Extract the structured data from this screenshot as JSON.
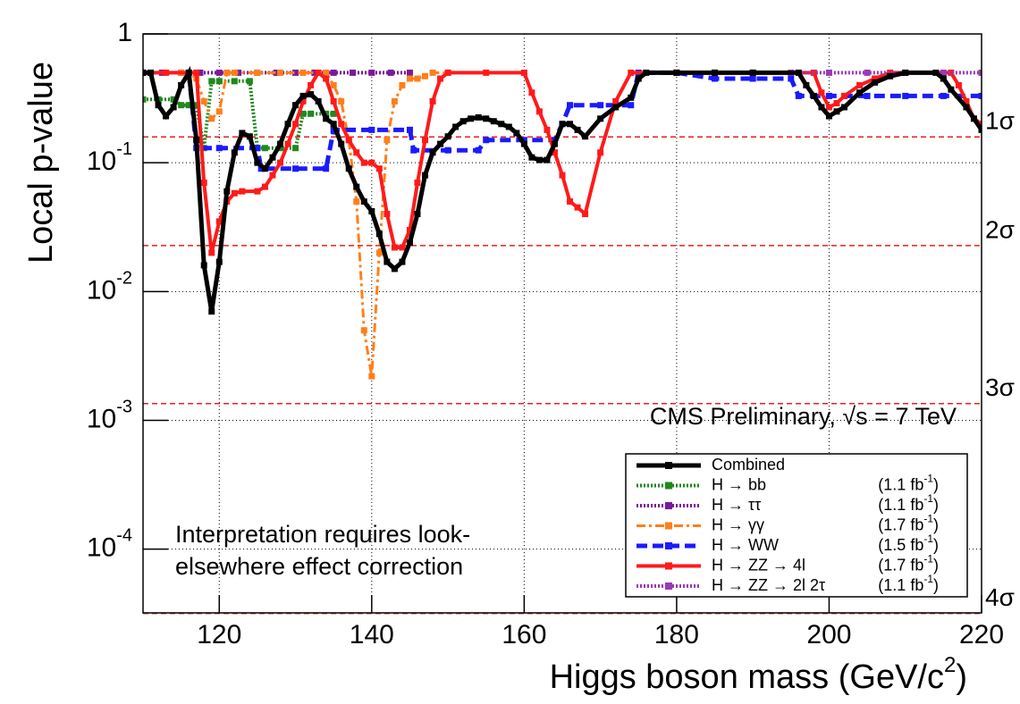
{
  "chart_data": {
    "type": "line",
    "xlabel": [
      "Higgs boson mass (GeV/c",
      "2",
      ")"
    ],
    "ylabel": "Local p-value",
    "xlim": [
      110,
      220
    ],
    "ylim": [
      3.2e-05,
      1
    ],
    "log_y": true,
    "grid": true,
    "xticks": [
      120,
      140,
      160,
      180,
      200,
      220
    ],
    "yticks": [
      {
        "value": 1,
        "label": "1"
      },
      {
        "value": 0.1,
        "label": "10",
        "exponent": "-1"
      },
      {
        "value": 0.01,
        "label": "10",
        "exponent": "-2"
      },
      {
        "value": 0.001,
        "label": "10",
        "exponent": "-3"
      },
      {
        "value": 0.0001,
        "label": "10",
        "exponent": "-4"
      }
    ],
    "reference_lines": [
      {
        "value": 0.1587,
        "label": "1σ",
        "color": "#e8201c"
      },
      {
        "value": 0.02275,
        "label": "2σ",
        "color": "#e8201c"
      },
      {
        "value": 0.00135,
        "label": "3σ",
        "color": "#e8201c"
      },
      {
        "value": 3.17e-05,
        "label": "4σ",
        "color": "#e8201c"
      }
    ],
    "annotations": [
      "CMS Preliminary, √s = 7 TeV",
      "Interpretation requires look-",
      "elsewhere effect correction"
    ],
    "legend": "lower right",
    "series": [
      {
        "name": "Combined",
        "color": "#000000",
        "dash": "solid",
        "width": 5,
        "x": [
          110,
          111,
          112,
          113,
          114,
          115,
          116,
          117,
          118,
          119,
          120,
          121,
          122,
          123,
          124,
          125,
          126,
          127,
          128,
          129,
          130,
          131,
          132,
          133,
          134,
          135,
          136,
          137,
          138,
          139,
          140,
          141,
          142,
          143,
          144,
          145,
          146,
          147,
          148,
          149,
          150,
          151,
          152,
          153,
          154,
          155,
          156,
          157,
          158,
          159,
          160,
          161,
          162,
          163,
          164,
          165,
          166,
          167,
          168,
          170,
          172,
          174,
          175,
          176,
          180,
          185,
          190,
          196,
          197,
          198,
          199,
          200,
          201,
          202,
          204,
          206,
          208,
          210,
          214,
          215,
          216,
          218,
          219,
          220
        ],
        "values": [
          0.5,
          0.5,
          0.28,
          0.23,
          0.27,
          0.4,
          0.5,
          0.15,
          0.016,
          0.007,
          0.017,
          0.06,
          0.12,
          0.17,
          0.16,
          0.1,
          0.09,
          0.11,
          0.14,
          0.2,
          0.28,
          0.33,
          0.34,
          0.3,
          0.22,
          0.2,
          0.14,
          0.09,
          0.065,
          0.05,
          0.042,
          0.028,
          0.017,
          0.015,
          0.017,
          0.024,
          0.04,
          0.08,
          0.12,
          0.14,
          0.16,
          0.19,
          0.21,
          0.22,
          0.225,
          0.22,
          0.21,
          0.2,
          0.19,
          0.17,
          0.14,
          0.11,
          0.105,
          0.105,
          0.14,
          0.2,
          0.2,
          0.18,
          0.16,
          0.22,
          0.27,
          0.32,
          0.45,
          0.5,
          0.5,
          0.5,
          0.5,
          0.5,
          0.4,
          0.33,
          0.27,
          0.23,
          0.25,
          0.27,
          0.35,
          0.42,
          0.47,
          0.5,
          0.5,
          0.45,
          0.37,
          0.27,
          0.22,
          0.18
        ]
      },
      {
        "name": "H → bb",
        "lumi": [
          "(1.1 fb",
          "-1",
          ")"
        ],
        "color": "#1e8a1e",
        "dash": "dotted",
        "width": 4,
        "x": [
          110,
          112,
          114,
          115,
          116,
          117,
          118,
          119,
          120,
          122,
          124,
          125,
          126,
          128,
          130,
          131,
          132,
          134,
          135
        ],
        "values": [
          0.31,
          0.31,
          0.31,
          0.28,
          0.28,
          0.28,
          0.13,
          0.43,
          0.43,
          0.43,
          0.43,
          0.13,
          0.13,
          0.13,
          0.13,
          0.24,
          0.24,
          0.24,
          0.24
        ]
      },
      {
        "name": "H → ττ",
        "lumi": [
          "(1.1 fb",
          "-1",
          ")"
        ],
        "color": "#7a1a9a",
        "dash": "dotted",
        "width": 4,
        "x": [
          110,
          112.5,
          115,
          117.5,
          120,
          122.5,
          125,
          127.5,
          130,
          132.5,
          135,
          137.5,
          140,
          142.5,
          145
        ],
        "values": [
          0.5,
          0.5,
          0.5,
          0.5,
          0.5,
          0.5,
          0.5,
          0.5,
          0.5,
          0.5,
          0.5,
          0.5,
          0.5,
          0.5,
          0.5
        ]
      },
      {
        "name": "H → γγ",
        "lumi": [
          "(1.7 fb",
          "-1",
          ")"
        ],
        "color": "#ff7f1a",
        "dash": "dashdot",
        "width": 3,
        "x": [
          115,
          116,
          117,
          118,
          119,
          120,
          121,
          122,
          125,
          128,
          131,
          134,
          135,
          136,
          137,
          138,
          139,
          140,
          141,
          142,
          143,
          144,
          145,
          146,
          147,
          148,
          150
        ],
        "values": [
          0.5,
          0.5,
          0.45,
          0.3,
          0.22,
          0.25,
          0.5,
          0.5,
          0.5,
          0.5,
          0.5,
          0.5,
          0.4,
          0.3,
          0.15,
          0.05,
          0.005,
          0.0022,
          0.02,
          0.15,
          0.3,
          0.4,
          0.45,
          0.45,
          0.47,
          0.5,
          0.5
        ]
      },
      {
        "name": "H → WW",
        "lumi": [
          "(1.5 fb",
          "-1",
          ")"
        ],
        "color": "#1a1aff",
        "dash": "dashed",
        "width": 5,
        "x": [
          116,
          117,
          120,
          125,
          125.5,
          130,
          134,
          135,
          140,
          145,
          145.5,
          150,
          154,
          155,
          160,
          164,
          165,
          166,
          170,
          174,
          175,
          180,
          185,
          190,
          195,
          196,
          200,
          205,
          210,
          215,
          220
        ],
        "values": [
          0.5,
          0.13,
          0.13,
          0.13,
          0.09,
          0.09,
          0.09,
          0.18,
          0.18,
          0.18,
          0.125,
          0.125,
          0.125,
          0.15,
          0.15,
          0.15,
          0.2,
          0.28,
          0.28,
          0.28,
          0.5,
          0.5,
          0.45,
          0.45,
          0.45,
          0.33,
          0.33,
          0.33,
          0.33,
          0.33,
          0.33
        ]
      },
      {
        "name": "H → ZZ → 4l",
        "lumi": [
          "(1.7 fb",
          "-1",
          ")"
        ],
        "color": "#ff1a1a",
        "dash": "solid",
        "width": 4,
        "x": [
          110,
          113,
          117,
          118,
          119,
          120,
          121,
          122,
          123,
          125,
          126,
          127,
          128,
          129,
          130,
          131,
          132,
          133,
          134,
          135,
          136,
          137,
          138,
          139,
          140,
          141,
          142,
          143,
          144,
          145,
          146,
          147,
          148,
          149,
          150,
          155,
          160,
          161,
          162,
          163,
          164,
          165,
          166,
          167,
          168,
          170,
          172,
          174,
          180,
          190,
          198,
          199,
          200,
          201,
          202,
          204,
          206,
          208,
          216,
          217,
          218,
          219,
          220
        ],
        "values": [
          0.5,
          0.5,
          0.5,
          0.07,
          0.02,
          0.035,
          0.05,
          0.058,
          0.06,
          0.06,
          0.065,
          0.08,
          0.1,
          0.14,
          0.2,
          0.3,
          0.4,
          0.5,
          0.45,
          0.3,
          0.2,
          0.15,
          0.12,
          0.1,
          0.1,
          0.09,
          0.04,
          0.022,
          0.022,
          0.03,
          0.07,
          0.15,
          0.3,
          0.45,
          0.5,
          0.5,
          0.5,
          0.35,
          0.25,
          0.18,
          0.12,
          0.08,
          0.05,
          0.045,
          0.04,
          0.12,
          0.3,
          0.5,
          0.5,
          0.5,
          0.5,
          0.35,
          0.27,
          0.29,
          0.33,
          0.4,
          0.45,
          0.5,
          0.5,
          0.4,
          0.3,
          0.22,
          0.2
        ]
      },
      {
        "name": "H → ZZ → 2l 2τ",
        "lumi": [
          "(1.1 fb",
          "-1",
          ")"
        ],
        "color": "#9a3ab8",
        "dash": "dotted",
        "width": 4,
        "x": [
          180,
          185,
          190,
          195,
          200,
          205,
          210,
          215,
          220
        ],
        "values": [
          0.5,
          0.5,
          0.5,
          0.5,
          0.5,
          0.5,
          0.5,
          0.5,
          0.5
        ]
      }
    ]
  }
}
